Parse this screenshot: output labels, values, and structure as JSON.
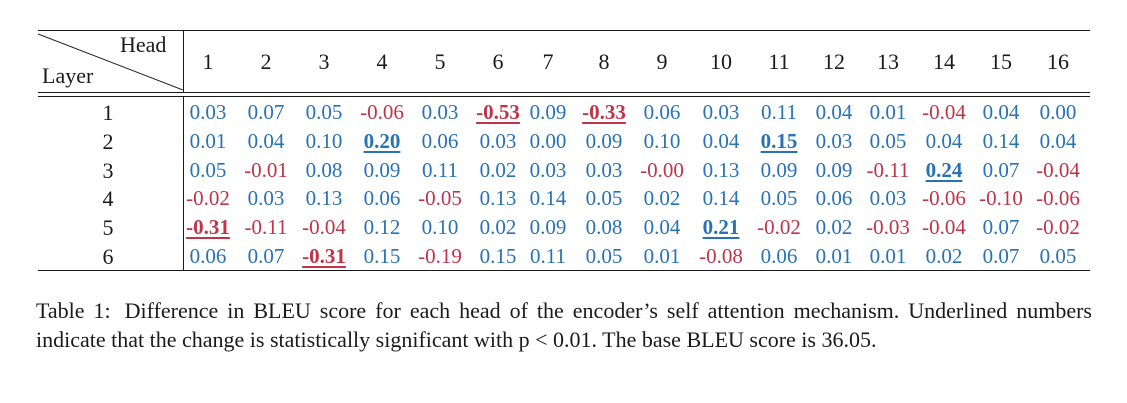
{
  "table": {
    "corner_head": "Head",
    "corner_layer": "Layer",
    "heads": [
      "1",
      "2",
      "3",
      "4",
      "5",
      "6",
      "7",
      "8",
      "9",
      "10",
      "11",
      "12",
      "13",
      "14",
      "15",
      "16"
    ],
    "rows": [
      {
        "layer": "1",
        "cells": [
          {
            "v": "0.03"
          },
          {
            "v": "0.07"
          },
          {
            "v": "0.05"
          },
          {
            "v": "-0.06"
          },
          {
            "v": "0.03"
          },
          {
            "v": "-0.53",
            "sig": true
          },
          {
            "v": "0.09"
          },
          {
            "v": "-0.33",
            "sig": true
          },
          {
            "v": "0.06"
          },
          {
            "v": "0.03"
          },
          {
            "v": "0.11"
          },
          {
            "v": "0.04"
          },
          {
            "v": "0.01"
          },
          {
            "v": "-0.04"
          },
          {
            "v": "0.04"
          },
          {
            "v": "0.00"
          }
        ]
      },
      {
        "layer": "2",
        "cells": [
          {
            "v": "0.01"
          },
          {
            "v": "0.04"
          },
          {
            "v": "0.10"
          },
          {
            "v": "0.20",
            "sig": true
          },
          {
            "v": "0.06"
          },
          {
            "v": "0.03"
          },
          {
            "v": "0.00"
          },
          {
            "v": "0.09"
          },
          {
            "v": "0.10"
          },
          {
            "v": "0.04"
          },
          {
            "v": "0.15",
            "sig": true
          },
          {
            "v": "0.03"
          },
          {
            "v": "0.05"
          },
          {
            "v": "0.04"
          },
          {
            "v": "0.14"
          },
          {
            "v": "0.04"
          }
        ]
      },
      {
        "layer": "3",
        "cells": [
          {
            "v": "0.05"
          },
          {
            "v": "-0.01"
          },
          {
            "v": "0.08"
          },
          {
            "v": "0.09"
          },
          {
            "v": "0.11"
          },
          {
            "v": "0.02"
          },
          {
            "v": "0.03"
          },
          {
            "v": "0.03"
          },
          {
            "v": "-0.00"
          },
          {
            "v": "0.13"
          },
          {
            "v": "0.09"
          },
          {
            "v": "0.09"
          },
          {
            "v": "-0.11"
          },
          {
            "v": "0.24",
            "sig": true
          },
          {
            "v": "0.07"
          },
          {
            "v": "-0.04"
          }
        ]
      },
      {
        "layer": "4",
        "cells": [
          {
            "v": "-0.02"
          },
          {
            "v": "0.03"
          },
          {
            "v": "0.13"
          },
          {
            "v": "0.06"
          },
          {
            "v": "-0.05"
          },
          {
            "v": "0.13"
          },
          {
            "v": "0.14"
          },
          {
            "v": "0.05"
          },
          {
            "v": "0.02"
          },
          {
            "v": "0.14"
          },
          {
            "v": "0.05"
          },
          {
            "v": "0.06"
          },
          {
            "v": "0.03"
          },
          {
            "v": "-0.06"
          },
          {
            "v": "-0.10"
          },
          {
            "v": "-0.06"
          }
        ]
      },
      {
        "layer": "5",
        "cells": [
          {
            "v": "-0.31",
            "sig": true
          },
          {
            "v": "-0.11"
          },
          {
            "v": "-0.04"
          },
          {
            "v": "0.12"
          },
          {
            "v": "0.10"
          },
          {
            "v": "0.02"
          },
          {
            "v": "0.09"
          },
          {
            "v": "0.08"
          },
          {
            "v": "0.04"
          },
          {
            "v": "0.21",
            "sig": true
          },
          {
            "v": "-0.02"
          },
          {
            "v": "0.02"
          },
          {
            "v": "-0.03"
          },
          {
            "v": "-0.04"
          },
          {
            "v": "0.07"
          },
          {
            "v": "-0.02"
          }
        ]
      },
      {
        "layer": "6",
        "cells": [
          {
            "v": "0.06"
          },
          {
            "v": "0.07"
          },
          {
            "v": "-0.31",
            "sig": true
          },
          {
            "v": "0.15"
          },
          {
            "v": "-0.19"
          },
          {
            "v": "0.15"
          },
          {
            "v": "0.11"
          },
          {
            "v": "0.05"
          },
          {
            "v": "0.01"
          },
          {
            "v": "-0.08"
          },
          {
            "v": "0.06"
          },
          {
            "v": "0.01"
          },
          {
            "v": "0.01"
          },
          {
            "v": "0.02"
          },
          {
            "v": "0.07"
          },
          {
            "v": "0.05"
          }
        ]
      }
    ]
  },
  "colors": {
    "positive": "#2872b5",
    "negative": "#c0344a",
    "text": "#1a1a1a"
  },
  "caption": {
    "label": "Table 1:",
    "text": "Difference in BLEU score for each head of the encoder’s self attention mechanism. Underlined numbers indicate that the change is statistically significant with p < 0.01. The base BLEU score is 36.05."
  }
}
